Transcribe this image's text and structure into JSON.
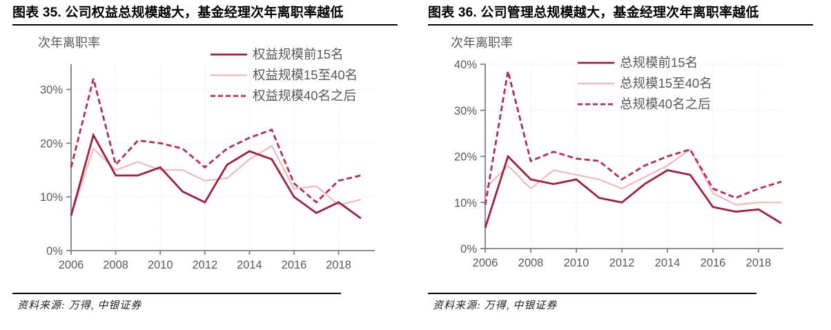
{
  "page": {
    "background": "#ffffff"
  },
  "panels": [
    {
      "title": "图表 35. 公司权益总规模越大，基金经理次年离职率越低",
      "source_label": "资料来源: 万得, 中银证券"
    },
    {
      "title": "图表 36. 公司管理总规模越大，基金经理次年离职率越低",
      "source_label": "资料来源: 万得, 中银证券"
    }
  ],
  "chart_data": [
    {
      "type": "line",
      "title": "",
      "ylabel": "次年离职率",
      "xlabel": "",
      "x": [
        2006,
        2007,
        2008,
        2009,
        2010,
        2011,
        2012,
        2013,
        2014,
        2015,
        2016,
        2017,
        2018,
        2019
      ],
      "x_tick_values": [
        2006,
        2008,
        2010,
        2012,
        2014,
        2016,
        2018
      ],
      "x_tick_labels": [
        "2006",
        "2008",
        "2010",
        "2012",
        "2014",
        "2016",
        "2018"
      ],
      "y_tick_values": [
        0,
        10,
        20,
        30
      ],
      "y_tick_labels": [
        "0%",
        "10%",
        "20%",
        "30%"
      ],
      "ylim": [
        0,
        34.7
      ],
      "grid": true,
      "legend_position": "top-right",
      "series": [
        {
          "name": "权益规模前15名",
          "line_style": "solid",
          "color": "#a21e3d",
          "width": 2.8,
          "values": [
            6.5,
            21.5,
            14,
            14,
            15.5,
            11,
            9,
            16,
            18.5,
            17,
            10,
            7,
            9,
            6
          ]
        },
        {
          "name": "权益规模15至40名",
          "line_style": "solid",
          "color": "#eebbb9",
          "width": 2.2,
          "values": [
            6.5,
            19,
            15,
            16.5,
            15,
            15,
            13,
            13.5,
            17,
            19.5,
            11.5,
            12,
            8.5,
            9.5
          ]
        },
        {
          "name": "权益规模40名之后",
          "line_style": "dashed",
          "color": "#b62d4f",
          "width": 2.8,
          "values": [
            15.5,
            32,
            16,
            20.5,
            20,
            19,
            15.5,
            19,
            21,
            22.5,
            12.5,
            9,
            13,
            14
          ]
        }
      ]
    },
    {
      "type": "line",
      "title": "",
      "ylabel": "次年离职率",
      "xlabel": "",
      "x": [
        2006,
        2007,
        2008,
        2009,
        2010,
        2011,
        2012,
        2013,
        2014,
        2015,
        2016,
        2017,
        2018,
        2019
      ],
      "x_tick_values": [
        2006,
        2008,
        2010,
        2012,
        2014,
        2016,
        2018
      ],
      "x_tick_labels": [
        "2006",
        "2008",
        "2010",
        "2012",
        "2014",
        "2016",
        "2018"
      ],
      "y_tick_values": [
        0,
        10,
        20,
        30,
        40
      ],
      "y_tick_labels": [
        "0%",
        "10%",
        "20%",
        "30%",
        "40%"
      ],
      "ylim": [
        0,
        40
      ],
      "grid": true,
      "legend_position": "top-right",
      "series": [
        {
          "name": "总规模前15名",
          "line_style": "solid",
          "color": "#a21e3d",
          "width": 2.8,
          "values": [
            4.5,
            20,
            15,
            14,
            15,
            11,
            10,
            14,
            17,
            16,
            9,
            8,
            8.5,
            5.5
          ]
        },
        {
          "name": "总规模15至40名",
          "line_style": "solid",
          "color": "#eebbb9",
          "width": 2.2,
          "values": [
            13,
            18,
            13,
            17,
            16,
            15,
            13,
            15.5,
            18,
            21.5,
            12,
            9.5,
            10,
            10
          ]
        },
        {
          "name": "总规模40名之后",
          "line_style": "dashed",
          "color": "#b62d4f",
          "width": 2.8,
          "values": [
            9.5,
            38.5,
            19,
            21,
            19.5,
            19,
            15,
            18,
            20,
            21.5,
            13,
            11,
            13,
            14.5
          ]
        }
      ]
    }
  ],
  "style_colors": {
    "axis_line": "#7f7f7f",
    "tick_label": "#595959",
    "axis_title": "#595959",
    "legend_label": "#595959",
    "gridline": "#dcdcdc",
    "title_text": "#000000",
    "divider": "#000000"
  }
}
